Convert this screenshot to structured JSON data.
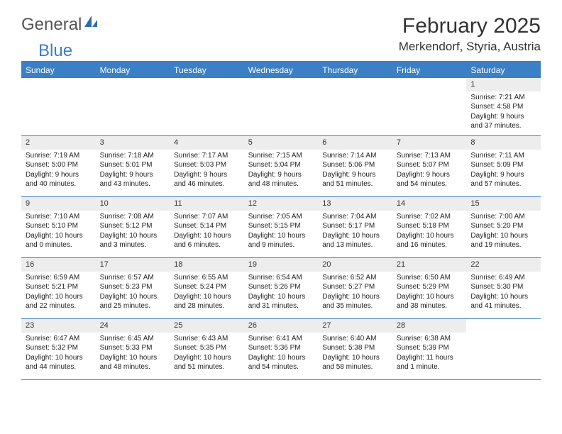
{
  "logo": {
    "text1": "General",
    "text2": "Blue"
  },
  "title": "February 2025",
  "location": "Merkendorf, Styria, Austria",
  "colors": {
    "header_bg": "#3b7fc4",
    "header_text": "#ffffff",
    "daybar_bg": "#ededed",
    "border": "#3b7fc4",
    "body_text": "#222222"
  },
  "weekdays": [
    "Sunday",
    "Monday",
    "Tuesday",
    "Wednesday",
    "Thursday",
    "Friday",
    "Saturday"
  ],
  "cells": [
    {
      "day": "",
      "lines": [
        "",
        "",
        "",
        ""
      ]
    },
    {
      "day": "",
      "lines": [
        "",
        "",
        "",
        ""
      ]
    },
    {
      "day": "",
      "lines": [
        "",
        "",
        "",
        ""
      ]
    },
    {
      "day": "",
      "lines": [
        "",
        "",
        "",
        ""
      ]
    },
    {
      "day": "",
      "lines": [
        "",
        "",
        "",
        ""
      ]
    },
    {
      "day": "",
      "lines": [
        "",
        "",
        "",
        ""
      ]
    },
    {
      "day": "1",
      "lines": [
        "Sunrise: 7:21 AM",
        "Sunset: 4:58 PM",
        "Daylight: 9 hours",
        "and 37 minutes."
      ]
    },
    {
      "day": "2",
      "lines": [
        "Sunrise: 7:19 AM",
        "Sunset: 5:00 PM",
        "Daylight: 9 hours",
        "and 40 minutes."
      ]
    },
    {
      "day": "3",
      "lines": [
        "Sunrise: 7:18 AM",
        "Sunset: 5:01 PM",
        "Daylight: 9 hours",
        "and 43 minutes."
      ]
    },
    {
      "day": "4",
      "lines": [
        "Sunrise: 7:17 AM",
        "Sunset: 5:03 PM",
        "Daylight: 9 hours",
        "and 46 minutes."
      ]
    },
    {
      "day": "5",
      "lines": [
        "Sunrise: 7:15 AM",
        "Sunset: 5:04 PM",
        "Daylight: 9 hours",
        "and 48 minutes."
      ]
    },
    {
      "day": "6",
      "lines": [
        "Sunrise: 7:14 AM",
        "Sunset: 5:06 PM",
        "Daylight: 9 hours",
        "and 51 minutes."
      ]
    },
    {
      "day": "7",
      "lines": [
        "Sunrise: 7:13 AM",
        "Sunset: 5:07 PM",
        "Daylight: 9 hours",
        "and 54 minutes."
      ]
    },
    {
      "day": "8",
      "lines": [
        "Sunrise: 7:11 AM",
        "Sunset: 5:09 PM",
        "Daylight: 9 hours",
        "and 57 minutes."
      ]
    },
    {
      "day": "9",
      "lines": [
        "Sunrise: 7:10 AM",
        "Sunset: 5:10 PM",
        "Daylight: 10 hours",
        "and 0 minutes."
      ]
    },
    {
      "day": "10",
      "lines": [
        "Sunrise: 7:08 AM",
        "Sunset: 5:12 PM",
        "Daylight: 10 hours",
        "and 3 minutes."
      ]
    },
    {
      "day": "11",
      "lines": [
        "Sunrise: 7:07 AM",
        "Sunset: 5:14 PM",
        "Daylight: 10 hours",
        "and 6 minutes."
      ]
    },
    {
      "day": "12",
      "lines": [
        "Sunrise: 7:05 AM",
        "Sunset: 5:15 PM",
        "Daylight: 10 hours",
        "and 9 minutes."
      ]
    },
    {
      "day": "13",
      "lines": [
        "Sunrise: 7:04 AM",
        "Sunset: 5:17 PM",
        "Daylight: 10 hours",
        "and 13 minutes."
      ]
    },
    {
      "day": "14",
      "lines": [
        "Sunrise: 7:02 AM",
        "Sunset: 5:18 PM",
        "Daylight: 10 hours",
        "and 16 minutes."
      ]
    },
    {
      "day": "15",
      "lines": [
        "Sunrise: 7:00 AM",
        "Sunset: 5:20 PM",
        "Daylight: 10 hours",
        "and 19 minutes."
      ]
    },
    {
      "day": "16",
      "lines": [
        "Sunrise: 6:59 AM",
        "Sunset: 5:21 PM",
        "Daylight: 10 hours",
        "and 22 minutes."
      ]
    },
    {
      "day": "17",
      "lines": [
        "Sunrise: 6:57 AM",
        "Sunset: 5:23 PM",
        "Daylight: 10 hours",
        "and 25 minutes."
      ]
    },
    {
      "day": "18",
      "lines": [
        "Sunrise: 6:55 AM",
        "Sunset: 5:24 PM",
        "Daylight: 10 hours",
        "and 28 minutes."
      ]
    },
    {
      "day": "19",
      "lines": [
        "Sunrise: 6:54 AM",
        "Sunset: 5:26 PM",
        "Daylight: 10 hours",
        "and 31 minutes."
      ]
    },
    {
      "day": "20",
      "lines": [
        "Sunrise: 6:52 AM",
        "Sunset: 5:27 PM",
        "Daylight: 10 hours",
        "and 35 minutes."
      ]
    },
    {
      "day": "21",
      "lines": [
        "Sunrise: 6:50 AM",
        "Sunset: 5:29 PM",
        "Daylight: 10 hours",
        "and 38 minutes."
      ]
    },
    {
      "day": "22",
      "lines": [
        "Sunrise: 6:49 AM",
        "Sunset: 5:30 PM",
        "Daylight: 10 hours",
        "and 41 minutes."
      ]
    },
    {
      "day": "23",
      "lines": [
        "Sunrise: 6:47 AM",
        "Sunset: 5:32 PM",
        "Daylight: 10 hours",
        "and 44 minutes."
      ]
    },
    {
      "day": "24",
      "lines": [
        "Sunrise: 6:45 AM",
        "Sunset: 5:33 PM",
        "Daylight: 10 hours",
        "and 48 minutes."
      ]
    },
    {
      "day": "25",
      "lines": [
        "Sunrise: 6:43 AM",
        "Sunset: 5:35 PM",
        "Daylight: 10 hours",
        "and 51 minutes."
      ]
    },
    {
      "day": "26",
      "lines": [
        "Sunrise: 6:41 AM",
        "Sunset: 5:36 PM",
        "Daylight: 10 hours",
        "and 54 minutes."
      ]
    },
    {
      "day": "27",
      "lines": [
        "Sunrise: 6:40 AM",
        "Sunset: 5:38 PM",
        "Daylight: 10 hours",
        "and 58 minutes."
      ]
    },
    {
      "day": "28",
      "lines": [
        "Sunrise: 6:38 AM",
        "Sunset: 5:39 PM",
        "Daylight: 11 hours",
        "and 1 minute."
      ]
    },
    {
      "day": "",
      "lines": [
        "",
        "",
        "",
        ""
      ]
    }
  ]
}
